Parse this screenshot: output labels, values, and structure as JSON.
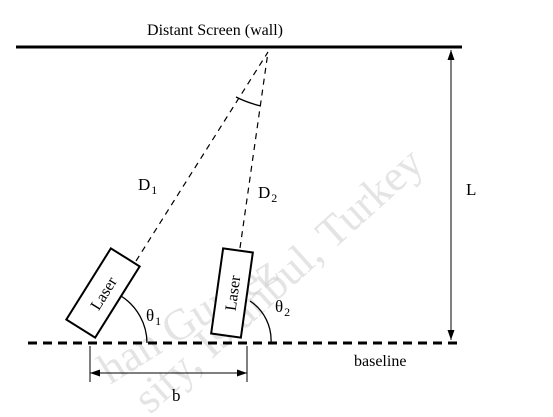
{
  "diagram": {
    "screen_label": "Distant Screen (wall)",
    "baseline_label": "baseline",
    "distance_label": "L",
    "separation_label": "b",
    "beam1_label": "D",
    "beam1_subscript": "1",
    "beam2_label": "D",
    "beam2_subscript": "2",
    "angle1_label": "θ",
    "angle1_subscript": "1",
    "angle2_label": "θ",
    "angle2_subscript": "2",
    "laser1_label": "Laser",
    "laser2_label": "Laser"
  },
  "watermark": {
    "line1": "han Gumez",
    "line2": "sity, Istanbul, Turkey"
  }
}
